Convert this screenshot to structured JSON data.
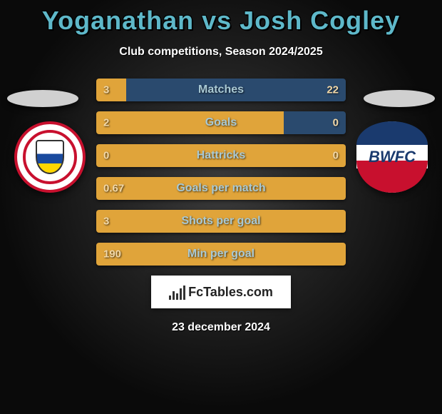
{
  "title": "Yoganathan vs Josh Cogley",
  "title_color": "#5eb8c9",
  "subtitle": "Club competitions, Season 2024/2025",
  "logo_text": "FcTables.com",
  "date": "23 december 2024",
  "colors": {
    "left_bar": "#e0a43a",
    "right_bar": "#2a4a6e",
    "neutral_bar": "#e0a43a",
    "label_text": "#a9c9d4",
    "value_text": "#f2d8a8"
  },
  "rows": [
    {
      "label": "Matches",
      "left": "3",
      "right": "22",
      "left_pct": 12,
      "right_pct": 88
    },
    {
      "label": "Goals",
      "left": "2",
      "right": "0",
      "left_pct": 75,
      "right_pct": 25
    },
    {
      "label": "Hattricks",
      "left": "0",
      "right": "0",
      "left_pct": 100,
      "right_pct": 0
    },
    {
      "label": "Goals per match",
      "left": "0.67",
      "right": "",
      "left_pct": 100,
      "right_pct": 0
    },
    {
      "label": "Shots per goal",
      "left": "3",
      "right": "",
      "left_pct": 100,
      "right_pct": 0
    },
    {
      "label": "Min per goal",
      "left": "190",
      "right": "",
      "left_pct": 100,
      "right_pct": 0
    }
  ]
}
